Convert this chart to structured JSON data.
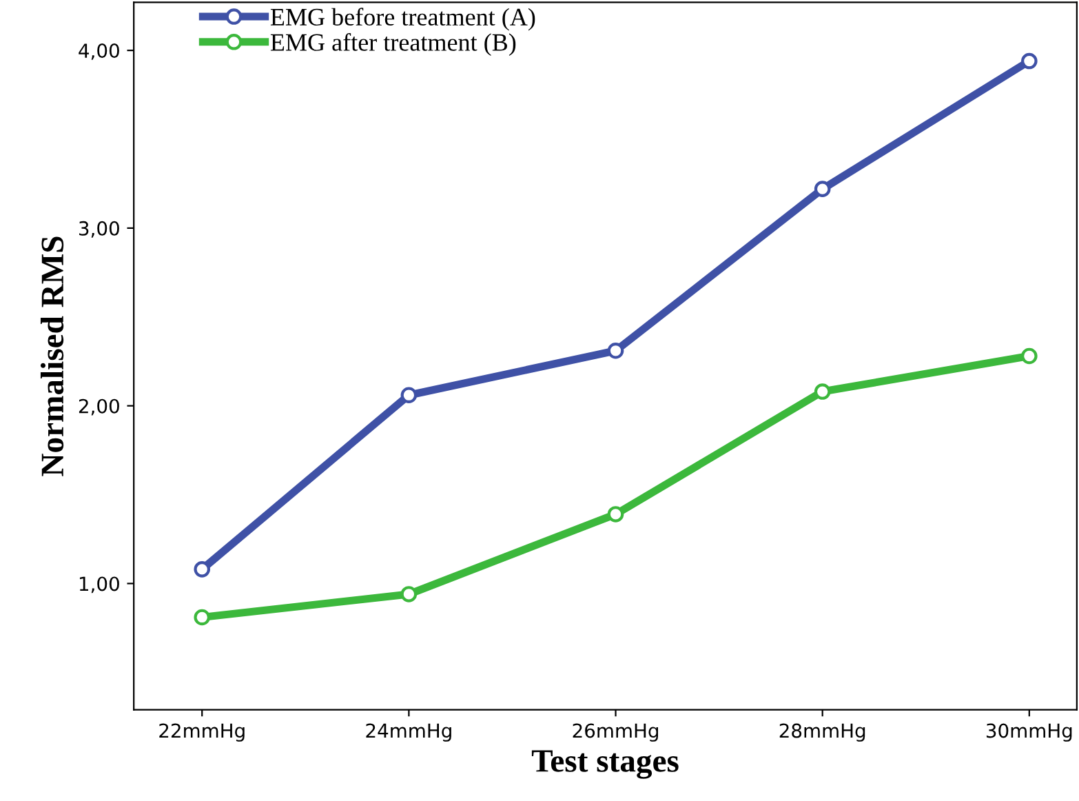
{
  "chart_data": {
    "type": "line",
    "xlabel": "Test stages",
    "ylabel": "Normalised RMS",
    "categories": [
      "22mmHg",
      "24mmHg",
      "26mmHg",
      "28mmHg",
      "30mmHg"
    ],
    "series": [
      {
        "name": "EMG before treatment (A)",
        "color": "#3f51a6",
        "values": [
          1.08,
          2.06,
          2.31,
          3.22,
          3.94
        ]
      },
      {
        "name": "EMG after treatment (B)",
        "color": "#3cb83c",
        "values": [
          0.81,
          0.94,
          1.39,
          2.08,
          2.28
        ]
      }
    ],
    "ylim": [
      0.29,
      4.27
    ],
    "yticks": [
      {
        "value": 1,
        "label": "1,00"
      },
      {
        "value": 2,
        "label": "2,00"
      },
      {
        "value": 3,
        "label": "3,00"
      },
      {
        "value": 4,
        "label": "4,00"
      }
    ],
    "marker": "circle",
    "line_style": "solid",
    "legend": "top left",
    "grid": false
  }
}
